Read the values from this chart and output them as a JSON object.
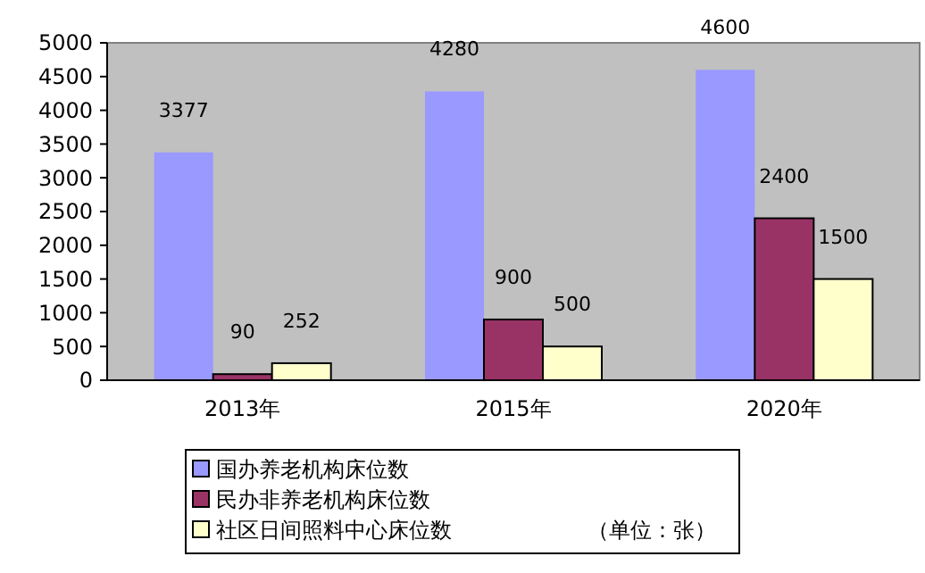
{
  "chart_data": {
    "type": "bar",
    "categories": [
      "2013年",
      "2015年",
      "2020年"
    ],
    "series": [
      {
        "name": "国办养老机构床位数",
        "color": "#9999ff",
        "values": [
          3377,
          4280,
          4600
        ]
      },
      {
        "name": "民办非养老机构床位数",
        "color": "#993366",
        "values": [
          90,
          900,
          2400
        ]
      },
      {
        "name": "社区日间照料中心床位数",
        "color": "#ffffcc",
        "values": [
          252,
          500,
          1500
        ]
      }
    ],
    "ylim": [
      0,
      5000
    ],
    "yticks": [
      0,
      500,
      1000,
      1500,
      2000,
      2500,
      3000,
      3500,
      4000,
      4500,
      5000
    ],
    "grid": false,
    "legend": "bottom",
    "data_labels": true,
    "annotations": [
      "（单位：张）"
    ]
  }
}
